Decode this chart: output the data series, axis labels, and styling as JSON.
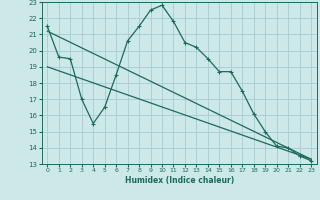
{
  "xlabel": "Humidex (Indice chaleur)",
  "bg_color": "#cce8e8",
  "grid_color": "#aacccc",
  "line_color": "#1a6b5a",
  "xlim": [
    -0.5,
    23.5
  ],
  "ylim": [
    13,
    23
  ],
  "yticks": [
    13,
    14,
    15,
    16,
    17,
    18,
    19,
    20,
    21,
    22,
    23
  ],
  "xticks": [
    0,
    1,
    2,
    3,
    4,
    5,
    6,
    7,
    8,
    9,
    10,
    11,
    12,
    13,
    14,
    15,
    16,
    17,
    18,
    19,
    20,
    21,
    22,
    23
  ],
  "line1_x": [
    0,
    1,
    2,
    3,
    4,
    5,
    6,
    7,
    8,
    9,
    10,
    11,
    12,
    13,
    14,
    15,
    16,
    17,
    18,
    19,
    20,
    21,
    22,
    23
  ],
  "line1_y": [
    21.5,
    19.6,
    19.5,
    17.0,
    15.5,
    16.5,
    18.5,
    20.6,
    21.5,
    22.5,
    22.8,
    21.8,
    20.5,
    20.2,
    19.5,
    18.7,
    18.7,
    17.5,
    16.1,
    15.0,
    14.1,
    14.0,
    13.5,
    13.2
  ],
  "line2_x": [
    0,
    23
  ],
  "line2_y": [
    21.2,
    13.3
  ],
  "line3_x": [
    0,
    23
  ],
  "line3_y": [
    19.0,
    13.3
  ]
}
